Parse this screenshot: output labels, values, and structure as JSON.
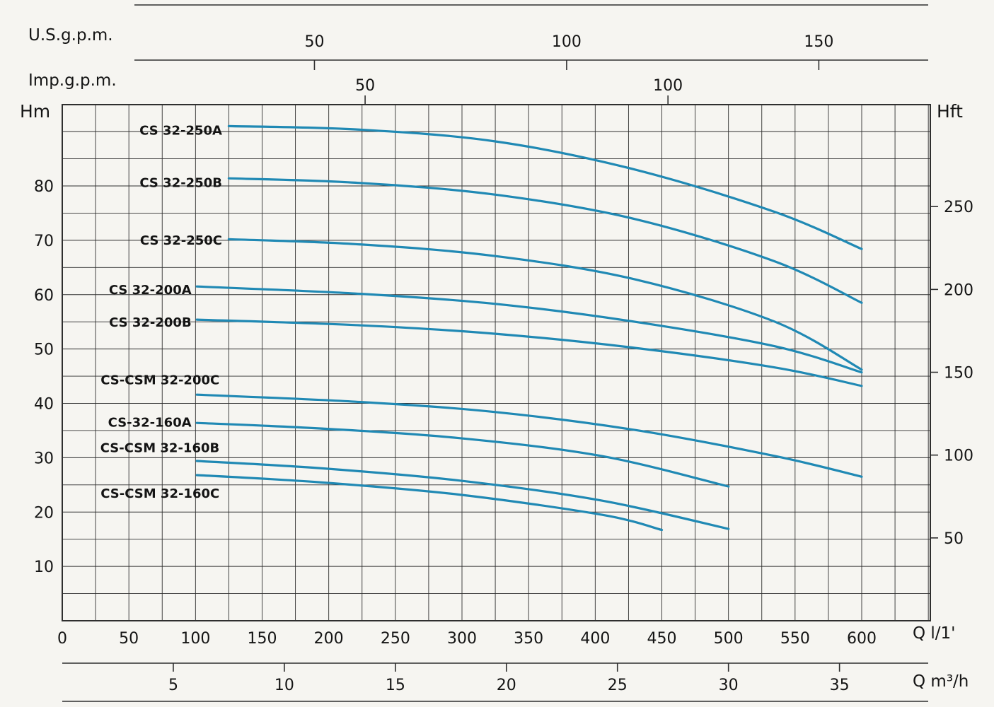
{
  "colors": {
    "background": "#f6f5f1",
    "grid": "#2f2f2f",
    "curve": "#2089b4",
    "text": "#141414"
  },
  "axes": {
    "us_gpm": {
      "label": "U.S.g.p.m.",
      "ticks": [
        50,
        100,
        150
      ]
    },
    "imp_gpm": {
      "label": "Imp.g.p.m.",
      "ticks": [
        50,
        100
      ]
    },
    "head_m": {
      "label": "Hm",
      "ticks": [
        10,
        20,
        30,
        40,
        50,
        60,
        70,
        80
      ]
    },
    "head_ft": {
      "label": "Hft",
      "ticks": [
        50,
        100,
        150,
        200,
        250
      ]
    },
    "flow_lmin": {
      "label": "Q l/1'",
      "ticks": [
        0,
        50,
        100,
        150,
        200,
        250,
        300,
        350,
        400,
        450,
        500,
        550,
        600
      ]
    },
    "flow_m3h": {
      "label": "Q m³/h",
      "ticks": [
        5,
        10,
        15,
        20,
        25,
        30,
        35
      ]
    }
  },
  "chart_data": {
    "type": "line",
    "title": "",
    "xlabel": "Q l/1'",
    "ylabel": "Hm",
    "xlim": [
      0,
      650
    ],
    "ylim": [
      0,
      95
    ],
    "grid": true,
    "x_minor_step": 25,
    "y_minor_step": 5,
    "legend_position": "labels-left-of-curves",
    "series": [
      {
        "name": "CS 32-250A",
        "x": [
          125,
          220,
          325,
          430,
          535,
          600
        ],
        "y": [
          91.0,
          90.4,
          88.2,
          83.0,
          75.2,
          68.4
        ],
        "label_at": [
          120,
          90.2
        ]
      },
      {
        "name": "CS 32-250B",
        "x": [
          125,
          220,
          325,
          430,
          535,
          600
        ],
        "y": [
          81.4,
          80.6,
          78.4,
          73.9,
          66.1,
          58.5
        ],
        "label_at": [
          120,
          80.6
        ]
      },
      {
        "name": "CS 32-250C",
        "x": [
          125,
          220,
          325,
          430,
          535,
          600
        ],
        "y": [
          70.2,
          69.3,
          67.1,
          62.8,
          55.0,
          46.2
        ],
        "label_at": [
          120,
          70.0
        ]
      },
      {
        "name": "CS 32-200A",
        "x": [
          101,
          220,
          325,
          430,
          535,
          600
        ],
        "y": [
          61.5,
          60.2,
          58.3,
          55.0,
          50.5,
          45.7
        ],
        "label_at": [
          97,
          60.9
        ]
      },
      {
        "name": "CS 32-200B",
        "x": [
          101,
          220,
          325,
          430,
          535,
          600
        ],
        "y": [
          55.4,
          54.4,
          52.8,
          50.2,
          46.6,
          43.2
        ],
        "label_at": [
          97,
          54.9
        ]
      },
      {
        "name": "CS-CSM 32-200C",
        "x": [
          101,
          220,
          325,
          430,
          535,
          600
        ],
        "y": [
          41.6,
          40.3,
          38.4,
          35.1,
          30.3,
          26.5
        ],
        "label_at": [
          118,
          44.3
        ]
      },
      {
        "name": "CS-32-160A",
        "x": [
          101,
          192,
          298,
          405,
          500
        ],
        "y": [
          36.4,
          35.4,
          33.6,
          30.3,
          24.7
        ],
        "label_at": [
          97,
          36.5
        ]
      },
      {
        "name": "CS-CSM 32-160B",
        "x": [
          101,
          192,
          298,
          405,
          500
        ],
        "y": [
          29.4,
          28.1,
          25.8,
          22.1,
          16.9
        ],
        "label_at": [
          118,
          31.8
        ]
      },
      {
        "name": "CS-CSM 32-160C",
        "x": [
          101,
          192,
          298,
          405,
          450
        ],
        "y": [
          26.8,
          25.5,
          23.2,
          19.5,
          16.7
        ],
        "label_at": [
          118,
          23.4
        ]
      }
    ]
  }
}
